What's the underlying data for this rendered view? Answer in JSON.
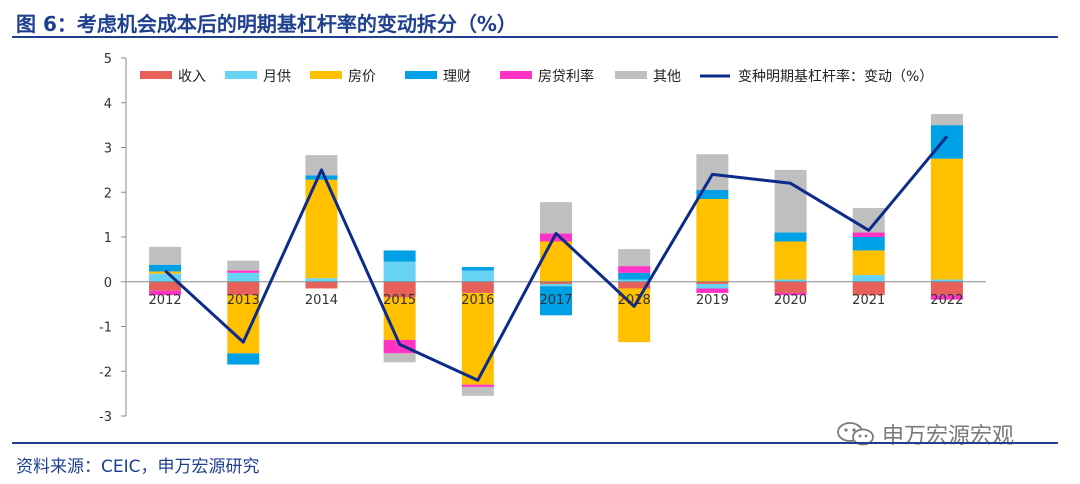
{
  "header": {
    "title": "图 6：考虑机会成本后的明期基杠杆率的变动拆分（%）"
  },
  "footer": {
    "source": "资料来源：CEIC，申万宏源研究",
    "watermark": "申万宏源宏观"
  },
  "colors": {
    "brand": "#1f3f8f",
    "line": "#0d2c8a"
  },
  "chart_data": {
    "type": "bar",
    "stacked": true,
    "categories": [
      "2012",
      "2013",
      "2014",
      "2015",
      "2016",
      "2017",
      "2018",
      "2019",
      "2020",
      "2021",
      "2022"
    ],
    "ylim": [
      -3,
      5
    ],
    "yticks": [
      -3,
      -2,
      -1,
      0,
      1,
      2,
      3,
      4,
      5
    ],
    "legend_position": "top",
    "series": [
      {
        "name": "收入",
        "color": "#e8605a",
        "values": [
          -0.2,
          -0.3,
          -0.15,
          -0.35,
          -0.25,
          -0.05,
          -0.15,
          -0.05,
          -0.25,
          -0.3,
          -0.3
        ]
      },
      {
        "name": "月供",
        "color": "#66d3f5",
        "values": [
          0.18,
          0.2,
          0.08,
          0.45,
          0.25,
          -0.05,
          0.05,
          -0.1,
          0.05,
          0.15,
          0.05
        ]
      },
      {
        "name": "房价",
        "color": "#ffc000",
        "values": [
          0.05,
          -1.3,
          2.2,
          -0.95,
          -2.05,
          0.9,
          -1.2,
          1.85,
          0.85,
          0.55,
          2.7
        ]
      },
      {
        "name": "理财",
        "color": "#00a0e6",
        "values": [
          0.15,
          -0.25,
          0.1,
          0.25,
          0.08,
          -0.65,
          0.15,
          0.2,
          0.2,
          0.3,
          0.75
        ]
      },
      {
        "name": "房贷利率",
        "color": "#ff33c4",
        "values": [
          -0.1,
          0.05,
          0.0,
          -0.3,
          -0.05,
          0.18,
          0.15,
          -0.1,
          -0.05,
          0.1,
          -0.1
        ]
      },
      {
        "name": "其他",
        "color": "#bfbfbf",
        "values": [
          0.4,
          0.22,
          0.45,
          -0.2,
          -0.2,
          0.7,
          0.38,
          0.8,
          1.4,
          0.55,
          0.25
        ]
      }
    ],
    "line": {
      "name": "变种明期基杠杆率：变动（%）",
      "color": "#0d2c8a",
      "values": [
        0.25,
        -1.35,
        2.5,
        -1.4,
        -2.2,
        1.08,
        -0.55,
        2.4,
        2.2,
        1.15,
        3.25
      ]
    }
  }
}
